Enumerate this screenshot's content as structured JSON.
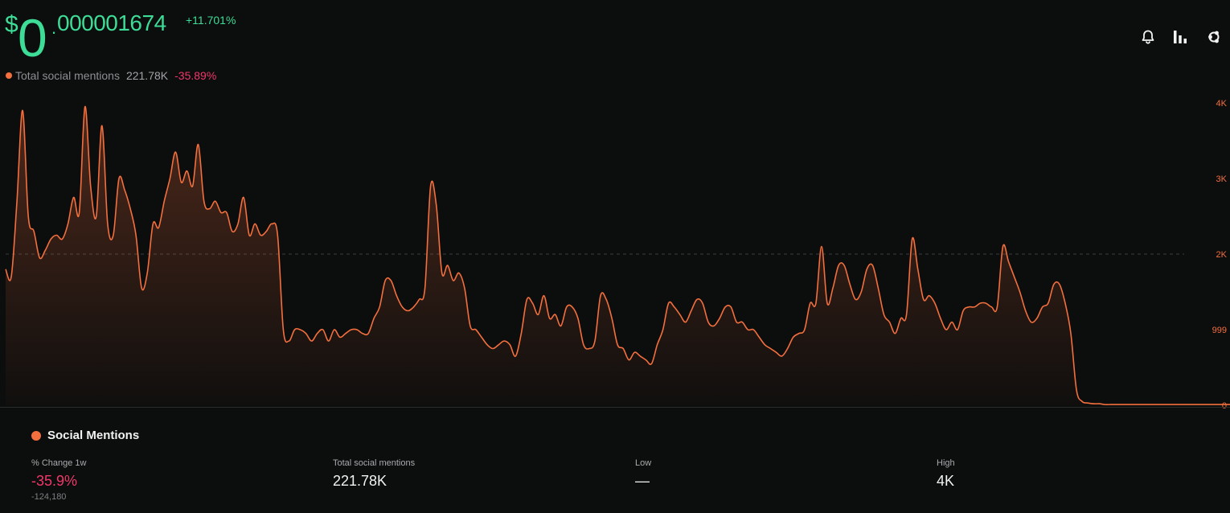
{
  "header": {
    "price": {
      "dollar": "$",
      "zero": "0",
      "dot": ".",
      "decimals": "000001674"
    },
    "price_change": "+11.701%",
    "legend": {
      "label": "Total social mentions",
      "value": "221.78K",
      "change": "-35.89%"
    },
    "toolbar": [
      {
        "name": "bell-icon",
        "icon": "bell"
      },
      {
        "name": "bar-chart-icon",
        "icon": "bar-chart"
      },
      {
        "name": "share-icon",
        "icon": "share"
      }
    ]
  },
  "colors": {
    "accent_green": "#3ddc97",
    "series": "#f36f3e",
    "negative": "#f0386b",
    "background": "#0c0d0d"
  },
  "chart_data": {
    "type": "area",
    "title": "",
    "xlabel": "",
    "ylabel": "",
    "ylim": [
      0,
      4000
    ],
    "y_ticks": [
      {
        "value": 4000,
        "label": "4K"
      },
      {
        "value": 3000,
        "label": "3K"
      },
      {
        "value": 2000,
        "label": "2K"
      },
      {
        "value": 999,
        "label": "999"
      },
      {
        "value": 0,
        "label": "0"
      }
    ],
    "reference_line": 2000,
    "grid": false,
    "series": [
      {
        "values": [
          1800,
          1700,
          2700,
          3900,
          2500,
          2300,
          1950,
          2050,
          2200,
          2250,
          2200,
          2400,
          2750,
          2550,
          3950,
          2900,
          2500,
          3700,
          2400,
          2250,
          3000,
          2850,
          2600,
          2250,
          1550,
          1750,
          2400,
          2350,
          2700,
          3000,
          3350,
          2950,
          3100,
          2900,
          3450,
          2700,
          2600,
          2700,
          2550,
          2550,
          2300,
          2400,
          2750,
          2250,
          2400,
          2250,
          2300,
          2400,
          2250,
          1000,
          850,
          1000,
          1000,
          950,
          850,
          950,
          1000,
          850,
          1000,
          900,
          950,
          1000,
          1000,
          950,
          950,
          1150,
          1300,
          1650,
          1650,
          1450,
          1300,
          1250,
          1300,
          1400,
          1550,
          2900,
          2650,
          1750,
          1850,
          1650,
          1750,
          1550,
          1050,
          1000,
          900,
          800,
          750,
          800,
          850,
          800,
          650,
          950,
          1400,
          1350,
          1200,
          1450,
          1150,
          1200,
          1050,
          1300,
          1300,
          1150,
          800,
          750,
          850,
          1450,
          1400,
          1150,
          800,
          750,
          600,
          700,
          650,
          600,
          550,
          800,
          1000,
          1350,
          1300,
          1200,
          1100,
          1250,
          1400,
          1350,
          1100,
          1050,
          1150,
          1300,
          1300,
          1100,
          1100,
          1000,
          1000,
          900,
          800,
          750,
          700,
          650,
          750,
          900,
          950,
          1000,
          1350,
          1350,
          2100,
          1350,
          1550,
          1850,
          1850,
          1600,
          1400,
          1500,
          1800,
          1850,
          1550,
          1200,
          1100,
          950,
          1150,
          1200,
          2200,
          1800,
          1400,
          1450,
          1350,
          1150,
          1000,
          1100,
          1000,
          1250,
          1300,
          1300,
          1350,
          1350,
          1300,
          1300,
          2100,
          1900,
          1700,
          1500,
          1250,
          1100,
          1150,
          1300,
          1350,
          1600,
          1600,
          1350,
          950,
          200,
          50,
          30,
          20,
          20,
          10,
          10,
          10,
          10,
          10,
          10,
          10,
          10,
          10,
          10,
          10,
          10,
          10,
          10,
          10
        ]
      }
    ]
  },
  "stats": {
    "title": "Social Mentions",
    "items": [
      {
        "label": "% Change 1w",
        "value": "-35.9%",
        "sub": "-124,180"
      },
      {
        "label": "Total social mentions",
        "value": "221.78K",
        "sub": ""
      },
      {
        "label": "Low",
        "value": "—",
        "sub": ""
      },
      {
        "label": "High",
        "value": "4K",
        "sub": ""
      }
    ]
  }
}
